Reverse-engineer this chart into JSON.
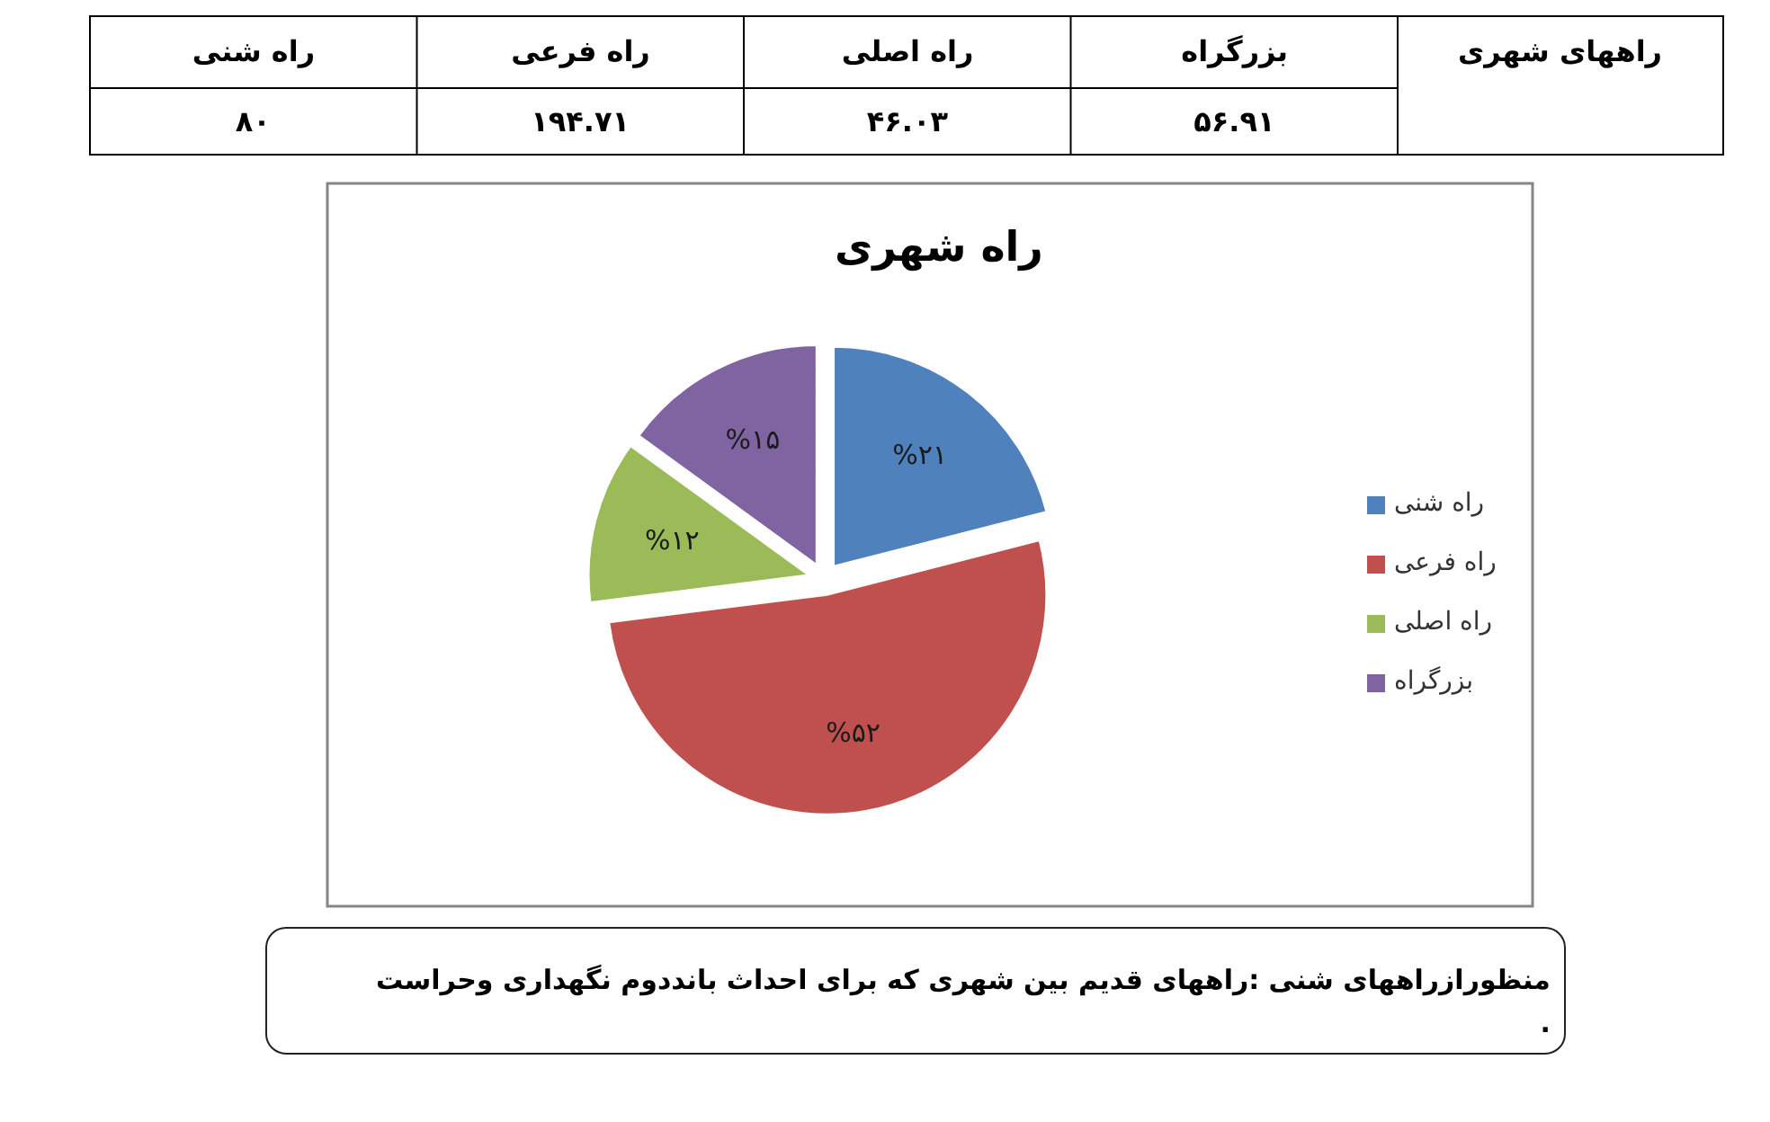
{
  "chart_data": [
    {
      "type": "other",
      "annotations": [
        "راههای شهری",
        "بزرگراه",
        "راه اصلی",
        "راه فرعی",
        "راه شنی",
        "۵۶.۹۱",
        "۴۶.۰۳",
        "۱۹۴.۷۱",
        "۸۰"
      ]
    },
    {
      "type": "pie",
      "title": "راه شهری",
      "categories": [
        "راه شنی",
        "راه فرعی",
        "راه اصلی",
        "بزرگراه"
      ],
      "values": [
        21,
        52,
        12,
        15
      ],
      "colors": [
        "#4f81bd",
        "#c0504d",
        "#9bbb59",
        "#8064a2"
      ],
      "value_labels": [
        "%۲۱",
        "%۵۲",
        "%۱۲",
        "%۱۵"
      ],
      "legend": "right",
      "annotations": [
        "منظورازراههای شنی :راههای قدیم بین شهری که برای احداث بانددوم نگهداری وحراست\n."
      ]
    }
  ]
}
